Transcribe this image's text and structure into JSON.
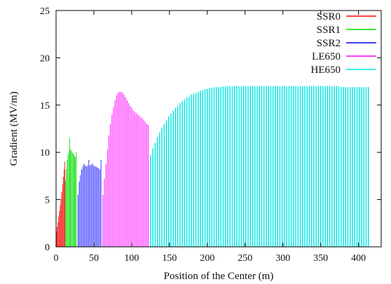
{
  "chart_data": {
    "type": "bar",
    "title": "",
    "xlabel": "Position of the Center (m)",
    "ylabel": "Gradient (MV/m)",
    "xlim": [
      0,
      430
    ],
    "ylim": [
      0,
      25
    ],
    "xticks": [
      0,
      50,
      100,
      150,
      200,
      250,
      300,
      350,
      400
    ],
    "yticks": [
      0,
      5,
      10,
      15,
      20,
      25
    ],
    "grid": false,
    "legend_position": "top-right",
    "series": [
      {
        "name": "SSR0",
        "color": "#ff0000",
        "x": [
          0.5,
          1.5,
          2.5,
          3.5,
          4.5,
          5.5,
          6.5,
          7.5,
          8.5,
          9.5,
          10.5,
          11.5
        ],
        "values": [
          1.6,
          2.1,
          2.6,
          3.2,
          3.8,
          4.4,
          5.1,
          5.8,
          6.6,
          7.4,
          8.2,
          9.0
        ]
      },
      {
        "name": "SSR1",
        "color": "#00dd00",
        "x": [
          12.5,
          13.6,
          14.7,
          15.8,
          16.9,
          18.0,
          19.1,
          20.2,
          21.3,
          22.4,
          23.5,
          24.6,
          25.7,
          26.8
        ],
        "values": [
          7.0,
          8.2,
          9.2,
          9.8,
          10.1,
          11.5,
          10.3,
          10.2,
          10.0,
          9.9,
          9.8,
          9.6,
          9.5,
          10.0
        ]
      },
      {
        "name": "SSR2",
        "color": "#0000ff",
        "x": [
          29,
          30.6,
          32.2,
          33.8,
          35.4,
          37,
          38.6,
          40.2,
          41.8,
          43.4,
          45,
          46.6,
          48.2,
          49.8,
          51.4,
          53,
          54.6,
          56.2,
          57.8,
          59.4
        ],
        "values": [
          5.5,
          6.9,
          7.6,
          8.2,
          8.5,
          8.8,
          8.6,
          8.5,
          8.6,
          9.2,
          8.6,
          8.7,
          8.8,
          8.6,
          8.5,
          8.5,
          8.4,
          8.3,
          8.2,
          9.2
        ]
      },
      {
        "name": "LE650",
        "color": "#ff00ff",
        "x": [
          62,
          64,
          66,
          68,
          70,
          72,
          74,
          76,
          78,
          80,
          82,
          84,
          86,
          88,
          90,
          92,
          94,
          96,
          98,
          100,
          102,
          104,
          106,
          108,
          110,
          112,
          114,
          116,
          118,
          120,
          122
        ],
        "values": [
          5.5,
          7.2,
          8.8,
          10.3,
          11.8,
          13.0,
          14.0,
          14.8,
          15.5,
          16.0,
          16.3,
          16.4,
          16.4,
          16.3,
          16.1,
          15.8,
          15.5,
          15.2,
          14.9,
          14.7,
          14.4,
          14.3,
          14.1,
          14.0,
          13.9,
          13.7,
          13.6,
          13.4,
          13.2,
          13.0,
          12.9
        ]
      },
      {
        "name": "HE650",
        "color": "#00e5e5",
        "x": [
          125,
          128,
          131,
          134,
          137,
          140,
          143,
          146,
          149,
          152,
          155,
          158,
          161,
          164,
          167,
          170,
          173,
          176,
          179,
          182,
          185,
          188,
          191,
          194,
          197,
          200,
          203,
          206,
          209,
          212,
          215,
          218,
          221,
          224,
          227,
          230,
          233,
          236,
          239,
          242,
          245,
          248,
          251,
          254,
          257,
          260,
          263,
          266,
          269,
          272,
          275,
          278,
          281,
          284,
          287,
          290,
          293,
          296,
          299,
          302,
          305,
          308,
          311,
          314,
          317,
          320,
          323,
          326,
          329,
          332,
          335,
          338,
          341,
          344,
          347,
          350,
          353,
          356,
          359,
          362,
          365,
          368,
          371,
          374,
          377,
          380,
          383,
          386,
          389,
          392,
          395,
          398,
          401,
          404,
          407,
          410,
          413
        ],
        "values": [
          9.7,
          10.4,
          11.0,
          11.6,
          12.1,
          12.6,
          13.0,
          13.4,
          13.8,
          14.1,
          14.4,
          14.7,
          14.9,
          15.2,
          15.4,
          15.6,
          15.8,
          15.9,
          16.1,
          16.2,
          16.3,
          16.4,
          16.5,
          16.6,
          16.7,
          16.7,
          16.8,
          16.8,
          16.9,
          16.9,
          16.9,
          16.9,
          17.0,
          17.0,
          17.0,
          17.0,
          17.0,
          17.0,
          17.0,
          17.0,
          17.0,
          17.0,
          17.0,
          17.0,
          17.0,
          17.0,
          17.0,
          17.0,
          17.0,
          17.0,
          17.0,
          17.0,
          17.0,
          17.0,
          17.0,
          17.0,
          17.0,
          17.0,
          17.0,
          17.0,
          17.0,
          17.0,
          17.0,
          17.0,
          17.0,
          17.0,
          17.0,
          17.0,
          17.0,
          17.0,
          17.0,
          17.0,
          17.0,
          17.0,
          17.0,
          17.0,
          17.0,
          17.0,
          17.0,
          17.0,
          17.0,
          17.0,
          17.0,
          17.0,
          16.9,
          16.9,
          16.9,
          16.9,
          16.9,
          16.9,
          16.9,
          16.9,
          16.9,
          16.9,
          16.9,
          16.9,
          16.9
        ]
      }
    ]
  }
}
